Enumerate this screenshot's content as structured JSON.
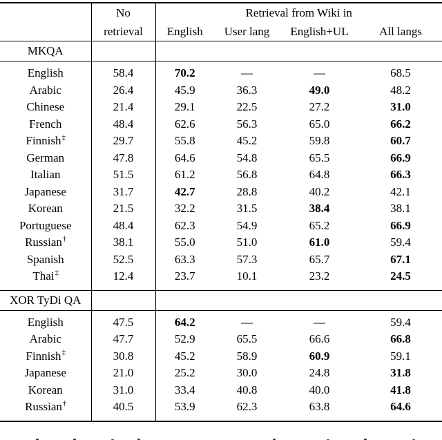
{
  "table": {
    "header": {
      "corner": "",
      "no_retrieval_line1": "No",
      "no_retrieval_line2": "retrieval",
      "group_title": "Retrieval from Wiki in",
      "subcolumns": [
        "English",
        "User lang",
        "English+UL",
        "All langs"
      ]
    },
    "sections": [
      {
        "title": "MKQA",
        "rows": [
          {
            "lang": "English",
            "sup": "",
            "values": [
              "58.4",
              "70.2",
              "—",
              "—",
              "68.5"
            ],
            "bold": 1
          },
          {
            "lang": "Arabic",
            "sup": "",
            "values": [
              "26.4",
              "45.9",
              "36.3",
              "49.0",
              "48.2"
            ],
            "bold": 3
          },
          {
            "lang": "Chinese",
            "sup": "",
            "values": [
              "21.4",
              "29.1",
              "22.5",
              "27.2",
              "31.0"
            ],
            "bold": 4
          },
          {
            "lang": "French",
            "sup": "",
            "values": [
              "48.4",
              "62.6",
              "56.3",
              "65.0",
              "66.2"
            ],
            "bold": 4
          },
          {
            "lang": "Finnish",
            "sup": "‡",
            "values": [
              "29.7",
              "55.8",
              "45.2",
              "59.8",
              "60.7"
            ],
            "bold": 4
          },
          {
            "lang": "German",
            "sup": "",
            "values": [
              "47.8",
              "64.6",
              "54.8",
              "65.5",
              "66.9"
            ],
            "bold": 4
          },
          {
            "lang": "Italian",
            "sup": "",
            "values": [
              "51.5",
              "61.2",
              "56.8",
              "64.8",
              "66.3"
            ],
            "bold": 4
          },
          {
            "lang": "Japanese",
            "sup": "",
            "values": [
              "31.7",
              "42.7",
              "28.8",
              "40.2",
              "42.1"
            ],
            "bold": 1
          },
          {
            "lang": "Korean",
            "sup": "",
            "values": [
              "21.5",
              "32.2",
              "31.5",
              "38.4",
              "38.1"
            ],
            "bold": 3
          },
          {
            "lang": "Portuguese",
            "sup": "",
            "values": [
              "48.4",
              "62.3",
              "54.9",
              "65.2",
              "66.9"
            ],
            "bold": 4
          },
          {
            "lang": "Russian",
            "sup": "†",
            "values": [
              "38.1",
              "55.0",
              "51.0",
              "61.0",
              "59.4"
            ],
            "bold": 3
          },
          {
            "lang": "Spanish",
            "sup": "",
            "values": [
              "52.5",
              "63.3",
              "57.3",
              "65.7",
              "67.1"
            ],
            "bold": 4
          },
          {
            "lang": "Thai",
            "sup": "‡",
            "values": [
              "12.4",
              "23.7",
              "10.1",
              "23.2",
              "24.5"
            ],
            "bold": 4
          }
        ]
      },
      {
        "title": "XOR TyDi QA",
        "rows": [
          {
            "lang": "English",
            "sup": "",
            "values": [
              "47.5",
              "64.2",
              "—",
              "—",
              "59.4"
            ],
            "bold": 1
          },
          {
            "lang": "Arabic",
            "sup": "",
            "values": [
              "47.7",
              "52.9",
              "65.5",
              "66.6",
              "66.8"
            ],
            "bold": 4
          },
          {
            "lang": "Finnish",
            "sup": "‡",
            "values": [
              "30.8",
              "45.2",
              "58.9",
              "60.9",
              "59.1"
            ],
            "bold": 3
          },
          {
            "lang": "Japanese",
            "sup": "",
            "values": [
              "21.0",
              "25.2",
              "30.0",
              "24.8",
              "31.8"
            ],
            "bold": 4
          },
          {
            "lang": "Korean",
            "sup": "",
            "values": [
              "31.0",
              "33.4",
              "40.8",
              "40.0",
              "41.8"
            ],
            "bold": 4
          },
          {
            "lang": "Russian",
            "sup": "†",
            "values": [
              "40.5",
              "53.9",
              "62.3",
              "63.8",
              "64.6"
            ],
            "bold": 4
          }
        ]
      }
    ]
  }
}
